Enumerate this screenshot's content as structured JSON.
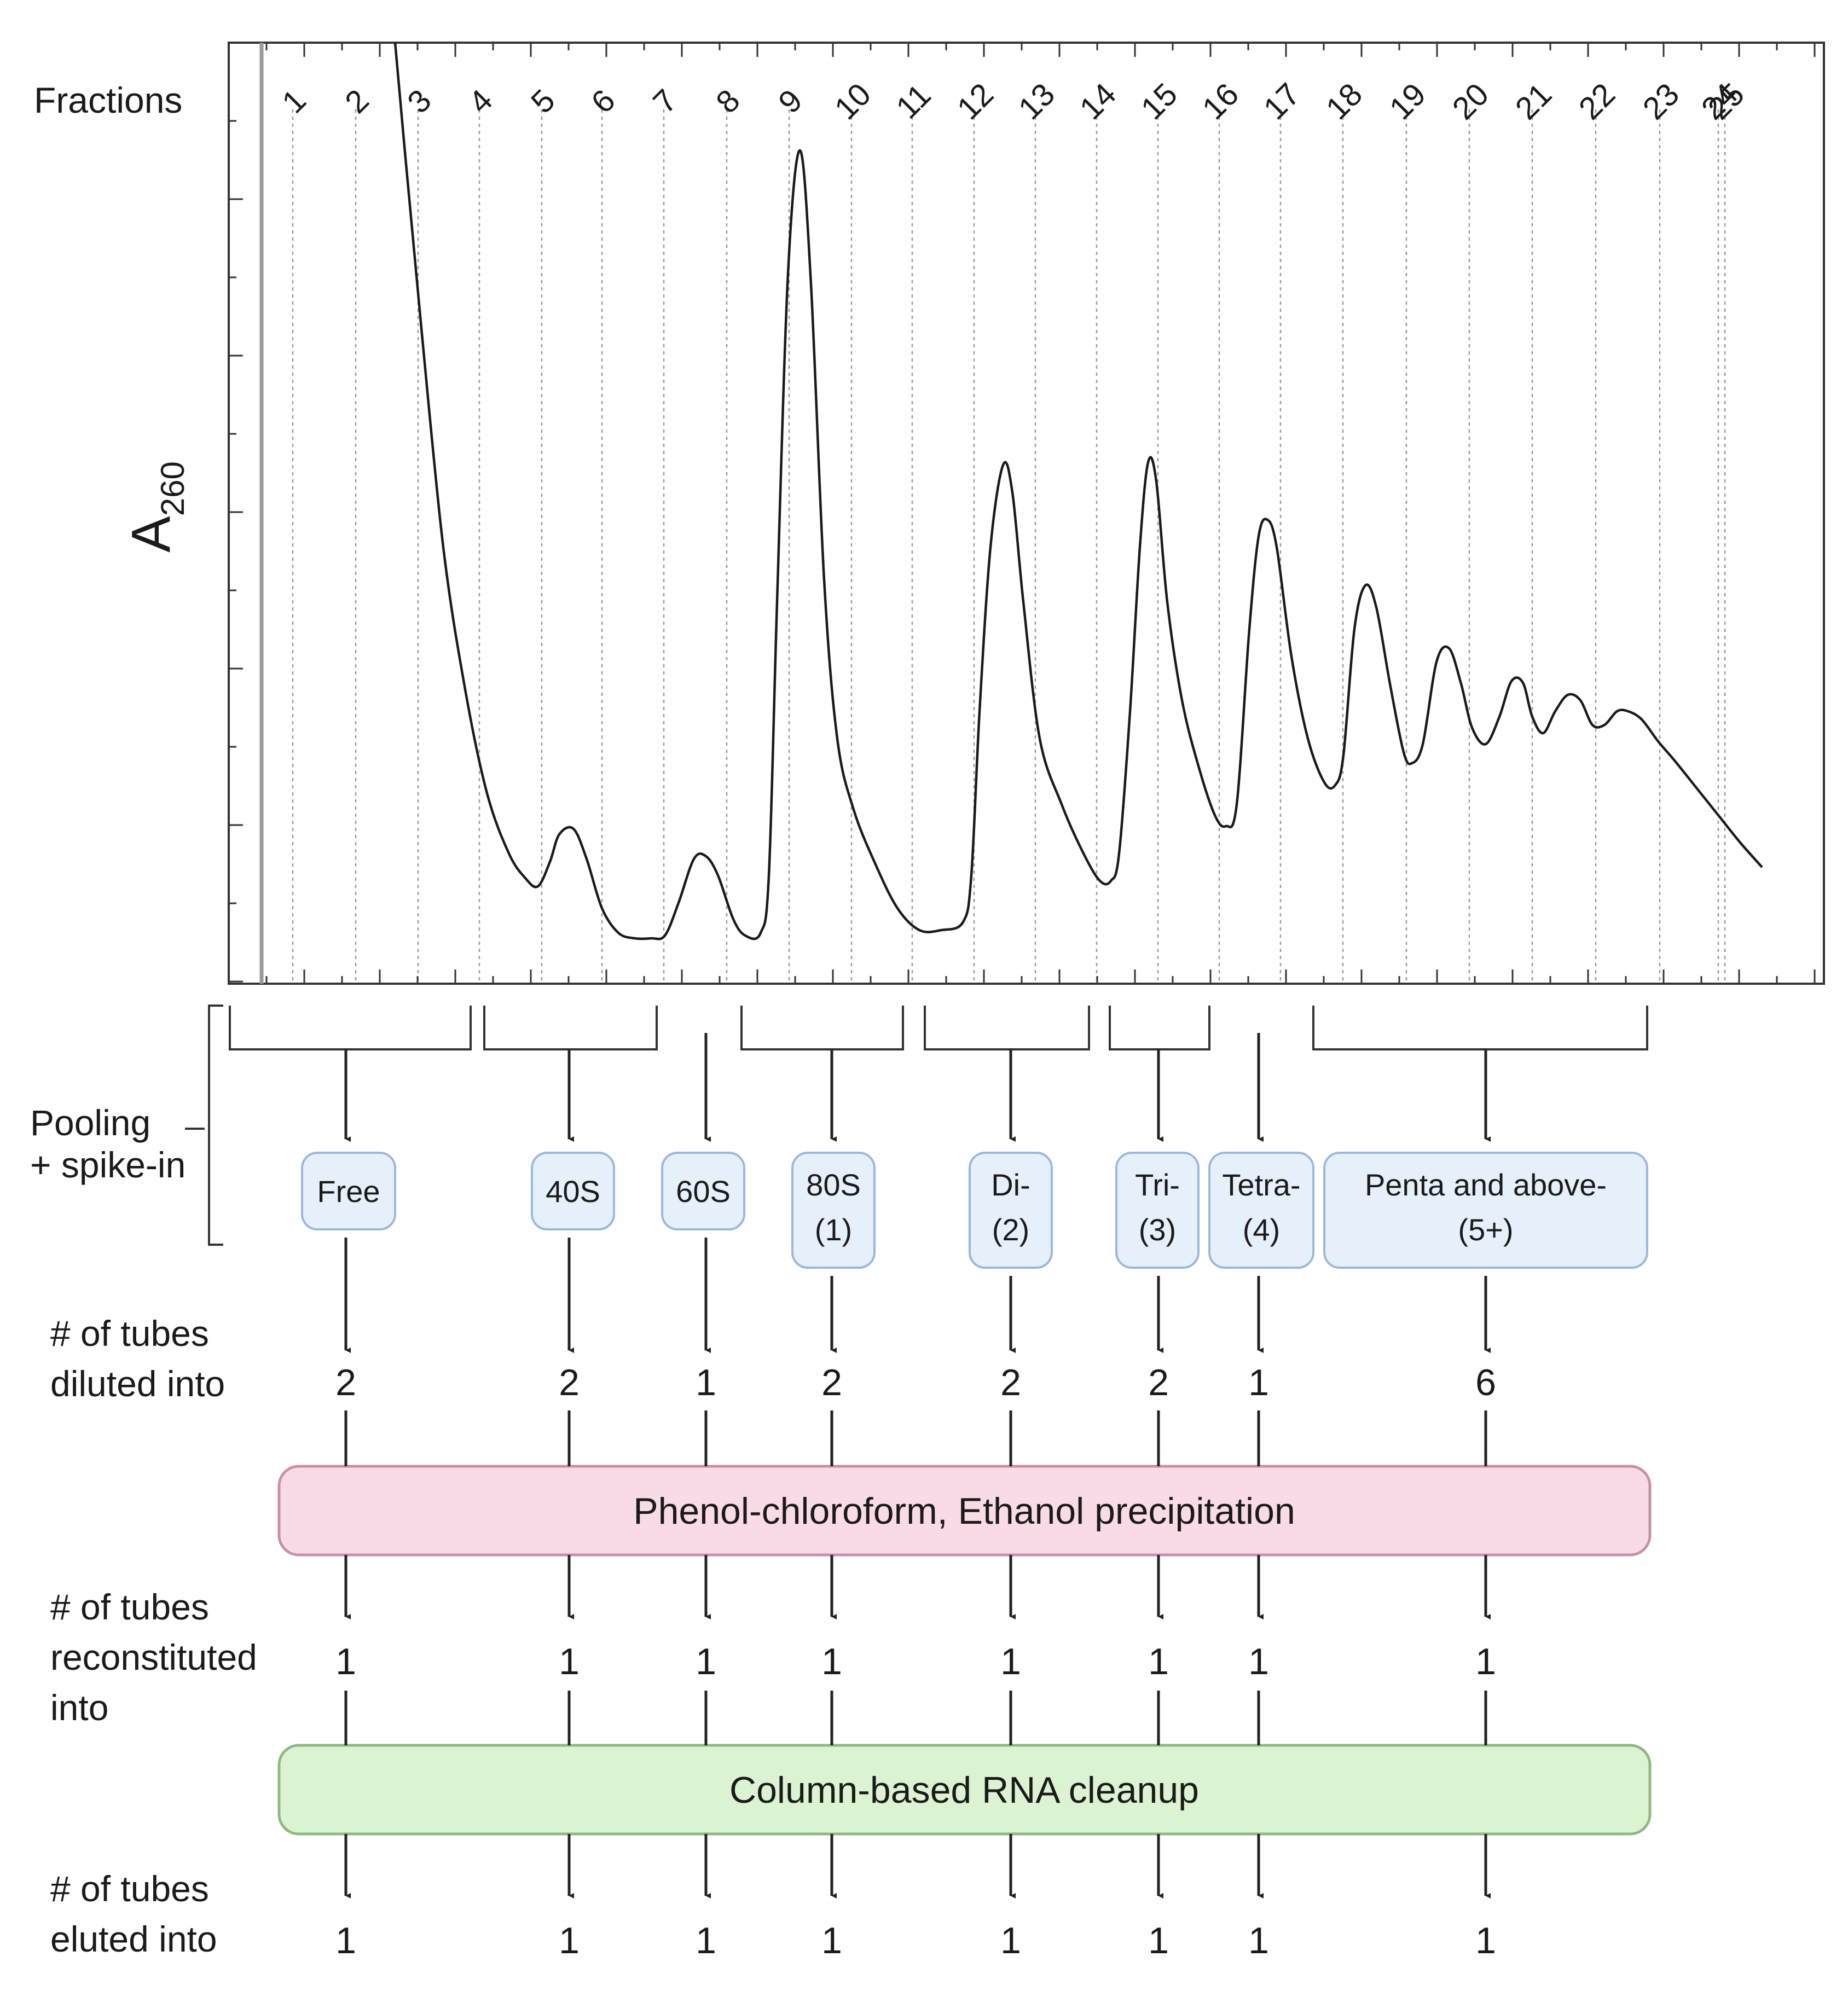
{
  "figure": {
    "fractions_label": "Fractions",
    "y_axis_label": "A",
    "y_axis_subscript": "260",
    "fraction_numbers": [
      "1",
      "2",
      "3",
      "4",
      "5",
      "6",
      "7",
      "8",
      "9",
      "10",
      "11",
      "12",
      "13",
      "14",
      "15",
      "16",
      "17",
      "18",
      "19",
      "20",
      "21",
      "22",
      "23",
      "24",
      "25"
    ],
    "pooling_label_line1": "Pooling",
    "pooling_label_line2": "+ spike-in",
    "pools": [
      {
        "line1": "Free",
        "line2": ""
      },
      {
        "line1": "40S",
        "line2": ""
      },
      {
        "line1": "60S",
        "line2": ""
      },
      {
        "line1": "80S",
        "line2": "(1)"
      },
      {
        "line1": "Di-",
        "line2": "(2)"
      },
      {
        "line1": "Tri-",
        "line2": "(3)"
      },
      {
        "line1": "Tetra-",
        "line2": "(4)"
      },
      {
        "line1": "Penta and above-",
        "line2": "(5+)"
      }
    ],
    "rows": [
      {
        "label_lines": [
          "# of tubes",
          "diluted into"
        ],
        "values": [
          "2",
          "2",
          "1",
          "2",
          "2",
          "2",
          "1",
          "6"
        ]
      },
      {
        "label_lines": [
          "# of tubes",
          "reconstituted",
          "into"
        ],
        "values": [
          "1",
          "1",
          "1",
          "1",
          "1",
          "1",
          "1",
          "1"
        ]
      },
      {
        "label_lines": [
          "# of tubes",
          "eluted into"
        ],
        "values": [
          "1",
          "1",
          "1",
          "1",
          "1",
          "1",
          "1",
          "1"
        ]
      }
    ],
    "steps": [
      {
        "label": "Phenol-chloroform, Ethanol precipitation",
        "color": "#f9dbe7",
        "border": "#c98fa8"
      },
      {
        "label": "Column-based RNA cleanup",
        "color": "#dcf3d2",
        "border": "#8fb882"
      }
    ],
    "pool_box_color": "#e6f0fb",
    "pool_box_border": "#9bb8dc"
  }
}
